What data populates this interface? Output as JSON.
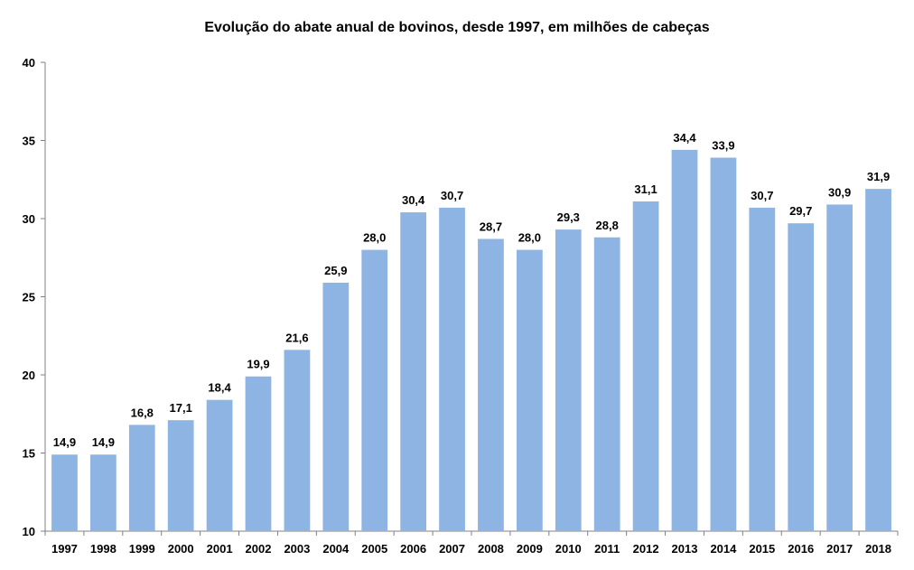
{
  "chart_data": {
    "type": "bar",
    "title": "Evolução do abate anual de bovinos, desde 1997, em milhões de cabeças",
    "xlabel": "",
    "ylabel": "",
    "ylim": [
      10,
      40
    ],
    "yticks": [
      "10",
      "15",
      "20",
      "25",
      "30",
      "35",
      "40"
    ],
    "grid": false,
    "bar_color": "#8EB4E3",
    "categories": [
      "1997",
      "1998",
      "1999",
      "2000",
      "2001",
      "2002",
      "2003",
      "2004",
      "2005",
      "2006",
      "2007",
      "2008",
      "2009",
      "2010",
      "2011",
      "2012",
      "2013",
      "2014",
      "2015",
      "2016",
      "2017",
      "2018"
    ],
    "values": [
      14.9,
      14.9,
      16.8,
      17.1,
      18.4,
      19.9,
      21.6,
      25.9,
      28.0,
      30.4,
      30.7,
      28.7,
      28.0,
      29.3,
      28.8,
      31.1,
      34.4,
      33.9,
      30.7,
      29.7,
      30.9,
      31.9
    ],
    "data_labels": [
      "14,9",
      "14,9",
      "16,8",
      "17,1",
      "18,4",
      "19,9",
      "21,6",
      "25,9",
      "28,0",
      "30,4",
      "30,7",
      "28,7",
      "28,0",
      "29,3",
      "28,8",
      "31,1",
      "34,4",
      "33,9",
      "30,7",
      "29,7",
      "30,9",
      "31,9"
    ]
  }
}
